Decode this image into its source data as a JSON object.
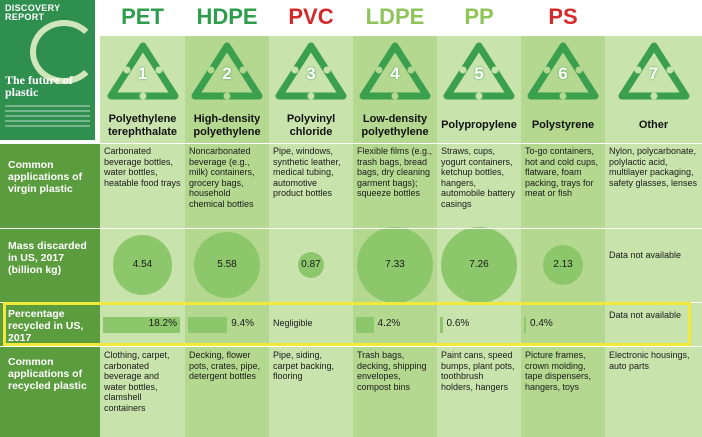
{
  "report": {
    "badge": "DISCOVERY REPORT",
    "title": "The future of plastic"
  },
  "plastics": [
    {
      "code": "PET",
      "code_color": "#2e9e4c",
      "number": "1",
      "name": "Polyethylene terephthalate",
      "virgin": "Carbonated beverage bottles, water bottles, heatable food trays",
      "mass": "4.54",
      "mass_value": 4.54,
      "recycled": "18.2%",
      "recycled_value": 18.2,
      "recycled_apps": "Clothing, carpet, carbonated beverage and water bottles, clamshell containers"
    },
    {
      "code": "HDPE",
      "code_color": "#2e9e4c",
      "number": "2",
      "name": "High-density polyethylene",
      "virgin": "Noncarbonated beverage (e.g., milk) containers, grocery bags, household chemical bottles",
      "mass": "5.58",
      "mass_value": 5.58,
      "recycled": "9.4%",
      "recycled_value": 9.4,
      "recycled_apps": "Decking, flower pots, crates, pipe, detergent bottles"
    },
    {
      "code": "PVC",
      "code_color": "#d42a2a",
      "number": "3",
      "name": "Polyvinyl chloride",
      "virgin": "Pipe, windows, synthetic leather, medical tubing, automotive product bottles",
      "mass": "0.87",
      "mass_value": 0.87,
      "recycled": "Negligible",
      "recycled_value": 0,
      "recycled_apps": "Pipe, siding, carpet backing, flooring"
    },
    {
      "code": "LDPE",
      "code_color": "#8ec45a",
      "number": "4",
      "name": "Low-density polyethylene",
      "virgin": "Flexible films (e.g., trash bags, bread bags, dry cleaning garment bags); squeeze bottles",
      "mass": "7.33",
      "mass_value": 7.33,
      "recycled": "4.2%",
      "recycled_value": 4.2,
      "recycled_apps": "Trash bags, decking, shipping envelopes, compost bins"
    },
    {
      "code": "PP",
      "code_color": "#8ec45a",
      "number": "5",
      "name": "Polypropylene",
      "virgin": "Straws, cups, yogurt containers, ketchup bottles, hangers, automobile battery casings",
      "mass": "7.26",
      "mass_value": 7.26,
      "recycled": "0.6%",
      "recycled_value": 0.6,
      "recycled_apps": "Paint cans, speed bumps, plant pots, toothbrush holders, hangers"
    },
    {
      "code": "PS",
      "code_color": "#d42a2a",
      "number": "6",
      "name": "Polystyrene",
      "virgin": "To-go containers, hot and cold cups, flatware, foam packing, trays for meat or fish",
      "mass": "2.13",
      "mass_value": 2.13,
      "recycled": "0.4%",
      "recycled_value": 0.4,
      "recycled_apps": "Picture frames, crown molding, tape dispensers, hangers, toys"
    },
    {
      "code": "",
      "code_color": "#ffffff",
      "number": "7",
      "name": "Other",
      "virgin": "Nylon, polycarbonate, polylactic acid, multilayer packaging, safety glasses, lenses",
      "mass": "Data not available",
      "mass_value": null,
      "recycled": "Data not available",
      "recycled_value": null,
      "recycled_apps": "Electronic housings, auto parts"
    }
  ],
  "rows": {
    "virgin_label": "Common applications of virgin plastic",
    "mass_label": "Mass discarded in US, 2017 (billion kg)",
    "recycled_label": "Percentage recycled in US, 2017",
    "recycled_apps_label": "Common applications of recycled plastic"
  }
}
